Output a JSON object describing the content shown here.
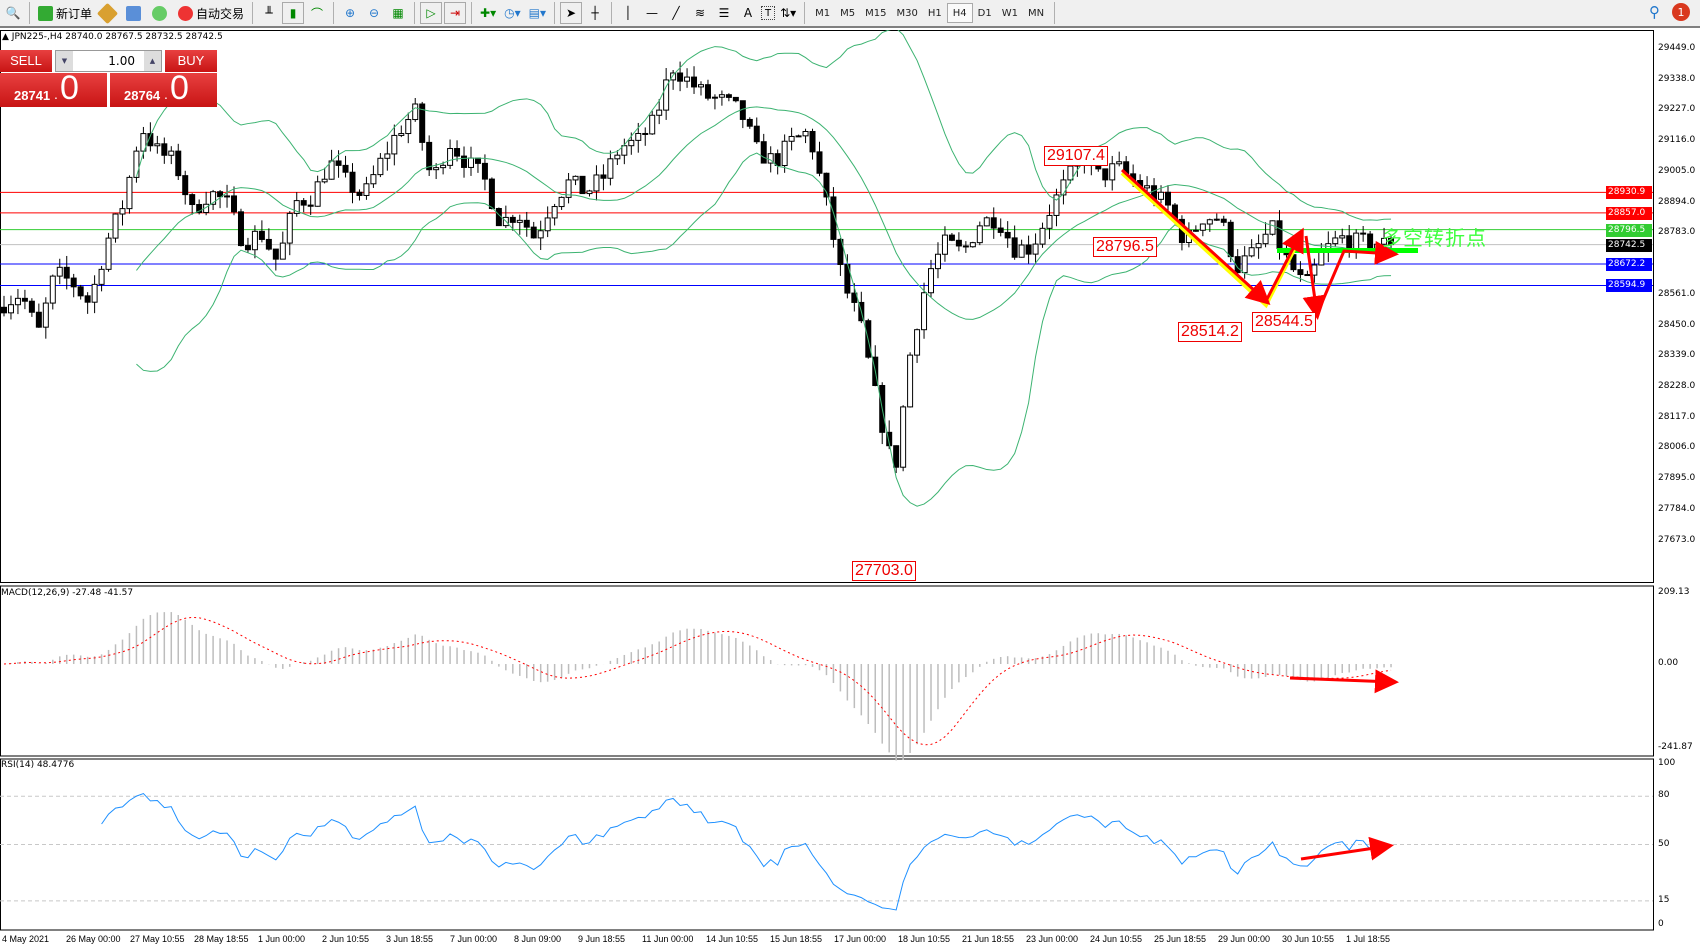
{
  "toolbar": {
    "new_order": "新订单",
    "auto_trading": "自动交易",
    "icons": [
      "zoom-icon",
      "new-order-icon",
      "market-watch-icon",
      "navigator-icon",
      "signals-icon",
      "auto-trading-icon",
      "bar-chart-icon",
      "candle-chart-icon",
      "line-chart-icon",
      "zoom-in-icon",
      "zoom-out-icon",
      "tile-windows-icon",
      "auto-scroll-icon",
      "chart-shift-icon",
      "indicators-icon",
      "periods-icon",
      "templates-icon",
      "cursor-icon",
      "crosshair-icon",
      "vertical-line-icon",
      "horizontal-line-icon",
      "trendline-icon",
      "fibonacci-icon",
      "fibonacci-channel-icon",
      "text-icon",
      "text-label-icon",
      "arrows-icon"
    ],
    "text_tool": "A",
    "label_tool": "T",
    "timeframes": [
      "M1",
      "M5",
      "M15",
      "M30",
      "H1",
      "H4",
      "D1",
      "W1",
      "MN"
    ],
    "active_timeframe": "H4",
    "notifications": "1"
  },
  "chart": {
    "symbol_line": "JPN225-,H4  28740.0 28767.5 28732.5 28742.5",
    "trade_panel": {
      "sell": "SELL",
      "buy": "BUY",
      "lot": "1.00",
      "bid_main": "28741",
      "bid_big": "0",
      "ask_main": "28764",
      "ask_big": "0",
      "bid_prefix": ".",
      "ask_prefix": "."
    },
    "price_axis": [
      "29449.0",
      "29338.0",
      "29227.0",
      "29116.0",
      "29005.0",
      "28894.0",
      "28783.0",
      "28561.0",
      "28450.0",
      "28339.0",
      "28228.0",
      "28117.0",
      "28006.0",
      "27895.0",
      "27784.0",
      "27673.0"
    ],
    "levels": [
      {
        "price": 28930.9,
        "label": "28930.9",
        "color": "#ff0000"
      },
      {
        "price": 28857.0,
        "label": "28857.0",
        "color": "#ff0000"
      },
      {
        "price": 28796.5,
        "label": "28796.5",
        "color": "#32cd32"
      },
      {
        "price": 28742.5,
        "label": "28742.5",
        "color": "#000000",
        "line": "#c0c0c0"
      },
      {
        "price": 28672.2,
        "label": "28672.2",
        "color": "#0000ff"
      },
      {
        "price": 28594.9,
        "label": "28594.9",
        "color": "#0000ff"
      }
    ],
    "annotations": {
      "high": "29107.4",
      "mid": "28796.5",
      "low1": "28514.2",
      "low2": "28544.5",
      "bottom": "27703.0",
      "turn": "多空转折点"
    },
    "close_path": [
      28531,
      28567,
      28422,
      28640,
      28604,
      28531,
      28750,
      28895,
      29168,
      29077,
      29041,
      28859,
      28932,
      28895,
      28750,
      28786,
      28677,
      28895,
      28914,
      29041,
      28968,
      28914,
      29041,
      29150,
      29223,
      28968,
      29114,
      29041,
      28986,
      28822,
      28859,
      28768,
      28895,
      28968,
      28932,
      28986,
      29096,
      29114,
      29187,
      29387,
      29332,
      29278,
      29260,
      29223,
      29077,
      29041,
      29114,
      29150,
      28895,
      28604,
      28458,
      28167,
      27912,
      28385,
      28640,
      28750,
      28713,
      28822,
      28841,
      28731,
      28731,
      28859,
      28968,
      29059,
      28986,
      29023,
      28968,
      28932,
      28877,
      28750,
      28841,
      28841,
      28660,
      28713,
      28804,
      28677,
      28586,
      28713,
      28768,
      28750,
      28750,
      28742
    ],
    "band_color": "#3cb371",
    "x_axis": [
      "4 May 2021",
      "26 May 00:00",
      "27 May 10:55",
      "28 May 18:55",
      "1 Jun 00:00",
      "2 Jun 10:55",
      "3 Jun 18:55",
      "7 Jun 00:00",
      "8 Jun 09:00",
      "9 Jun 18:55",
      "11 Jun 00:00",
      "14 Jun 10:55",
      "15 Jun 18:55",
      "17 Jun 00:00",
      "18 Jun 10:55",
      "21 Jun 18:55",
      "23 Jun 00:00",
      "24 Jun 10:55",
      "25 Jun 18:55",
      "29 Jun 00:00",
      "30 Jun 10:55",
      "1 Jul 18:55"
    ]
  },
  "macd": {
    "title": "MACD(12,26,9) -27.48 -41.57",
    "max": "209.13",
    "zero": "0.00",
    "min": "-241.87",
    "max_v": 209.13,
    "min_v": -241.87
  },
  "rsi": {
    "title": "RSI(14) 48.4776",
    "ticks": [
      "100",
      "80",
      "50",
      "15",
      "0"
    ],
    "levels": [
      80,
      50,
      15
    ]
  }
}
